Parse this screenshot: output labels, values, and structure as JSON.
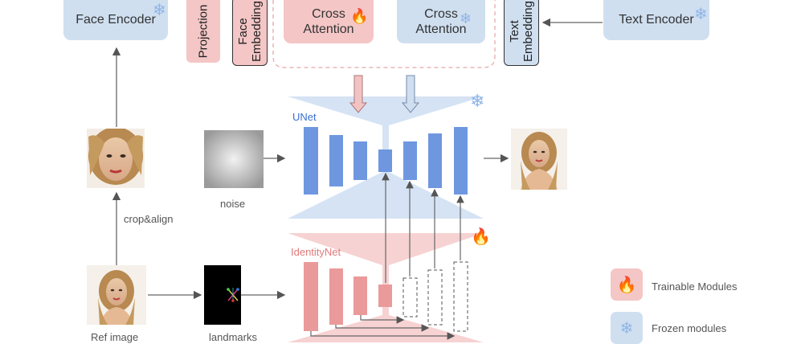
{
  "encoders": {
    "face_encoder": "Face Encoder",
    "text_encoder": "Text Encoder",
    "projection": "Projection",
    "face_embedding": "Face Embedding",
    "text_embedding": "Text Embedding"
  },
  "attention": {
    "cross_attention_trainable": "Cross Attention",
    "cross_attention_frozen": "Cross Attention"
  },
  "networks": {
    "unet": "UNet",
    "identitynet": "IdentityNet"
  },
  "labels": {
    "noise": "noise",
    "crop_align": "crop&align",
    "ref_image": "Ref image",
    "landmarks": "landmarks"
  },
  "legend": {
    "trainable": "Trainable Modules",
    "frozen": "Frozen modules"
  },
  "colors": {
    "frozen_fill": "#cfdff0",
    "trainable_fill": "#f4c6c6",
    "unet_blue": "#6f97e0",
    "identity_red": "#ea9a9a"
  },
  "icons": {
    "trainable": "flame-icon",
    "frozen": "snowflake-icon"
  }
}
